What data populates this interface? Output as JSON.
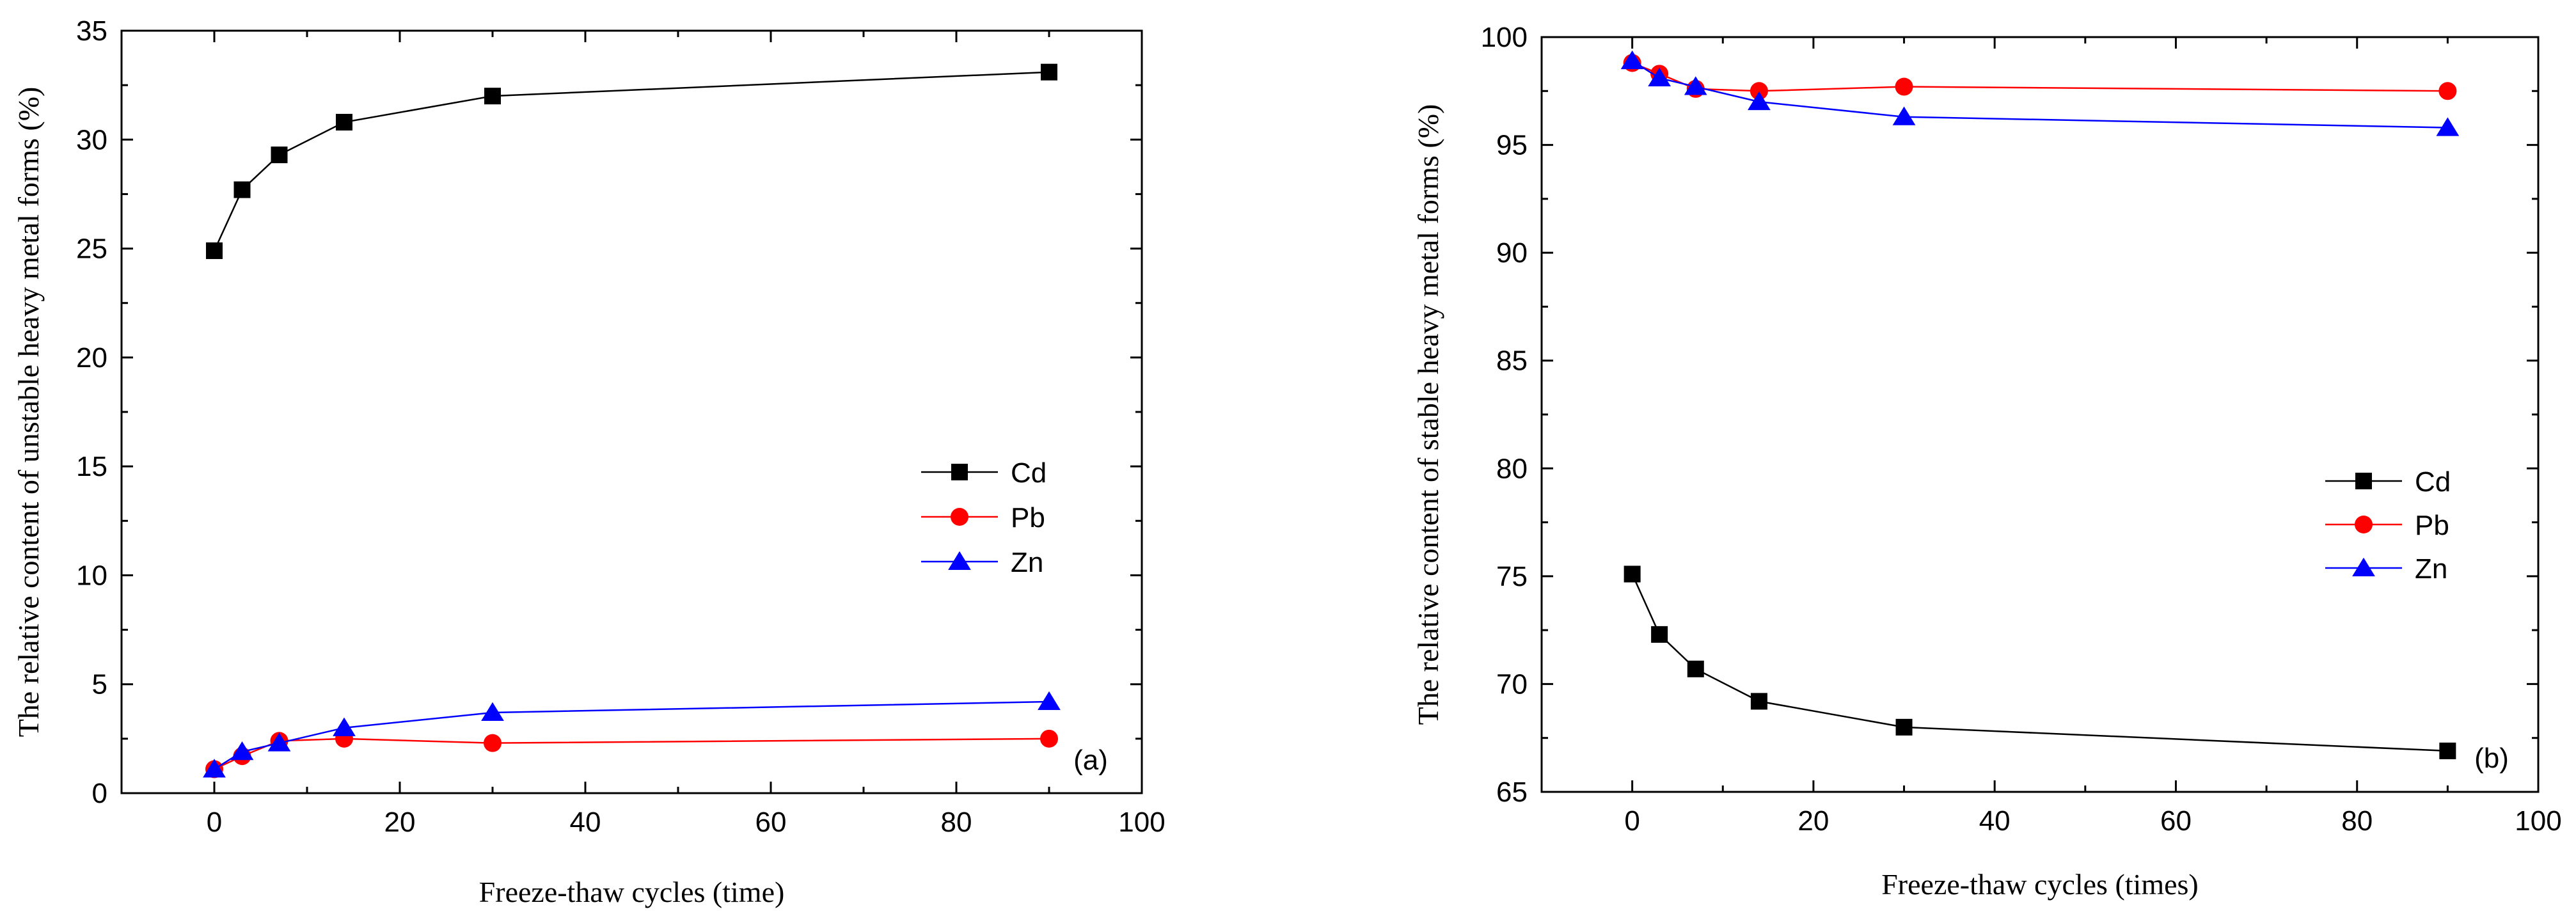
{
  "chart_data": [
    {
      "type": "line",
      "panel_label": "(a)",
      "xlabel": "Freeze-thaw cycles (time)",
      "ylabel": "The relative content of unstable heavy metal forms (%)",
      "xlim": [
        -10,
        100
      ],
      "ylim": [
        0,
        35
      ],
      "xticks": [
        0,
        20,
        40,
        60,
        80,
        100
      ],
      "yticks": [
        0,
        5,
        10,
        15,
        20,
        25,
        30,
        35
      ],
      "x": [
        0,
        3,
        7,
        14,
        30,
        90
      ],
      "legend_position": "center-right",
      "series": [
        {
          "name": "Cd",
          "color": "#000000",
          "marker": "square",
          "values": [
            24.9,
            27.7,
            29.3,
            30.8,
            32.0,
            33.1
          ]
        },
        {
          "name": "Pb",
          "color": "#ff0000",
          "marker": "circle",
          "values": [
            1.1,
            1.7,
            2.4,
            2.5,
            2.3,
            2.5
          ]
        },
        {
          "name": "Zn",
          "color": "#0000ff",
          "marker": "triangle",
          "values": [
            1.1,
            1.9,
            2.3,
            3.0,
            3.7,
            4.2
          ]
        }
      ]
    },
    {
      "type": "line",
      "panel_label": "(b)",
      "xlabel": "Freeze-thaw cycles (times)",
      "ylabel": "The relative content of stable heavy metal forms (%)",
      "xlim": [
        -10,
        100
      ],
      "ylim": [
        65,
        100
      ],
      "xticks": [
        0,
        20,
        40,
        60,
        80,
        100
      ],
      "yticks": [
        65,
        70,
        75,
        80,
        85,
        90,
        95,
        100
      ],
      "x": [
        0,
        3,
        7,
        14,
        30,
        90
      ],
      "legend_position": "center-right",
      "series": [
        {
          "name": "Cd",
          "color": "#000000",
          "marker": "square",
          "values": [
            75.1,
            72.3,
            70.7,
            69.2,
            68.0,
            66.9
          ]
        },
        {
          "name": "Pb",
          "color": "#ff0000",
          "marker": "circle",
          "values": [
            98.8,
            98.3,
            97.6,
            97.5,
            97.7,
            97.5
          ]
        },
        {
          "name": "Zn",
          "color": "#0000ff",
          "marker": "triangle",
          "values": [
            98.9,
            98.1,
            97.7,
            97.0,
            96.3,
            95.8
          ]
        }
      ]
    }
  ]
}
